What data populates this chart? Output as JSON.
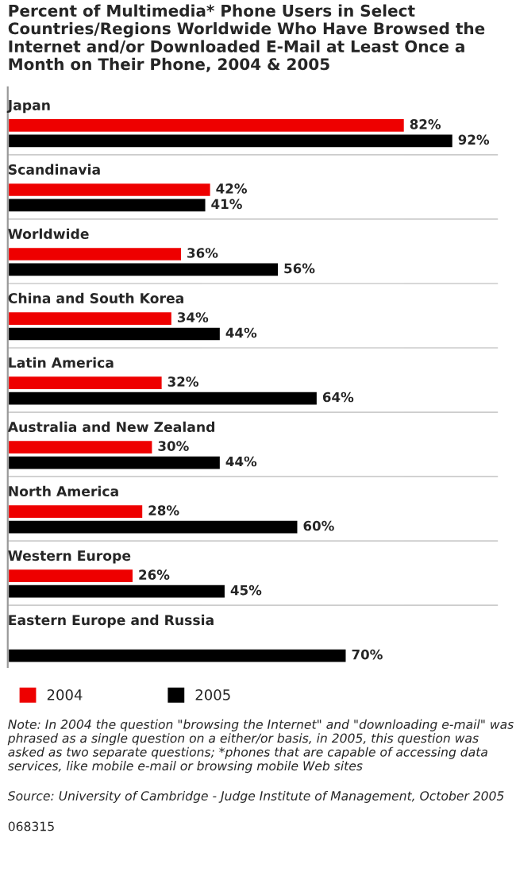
{
  "chart_data": {
    "type": "bar",
    "orientation": "horizontal",
    "title": "Percent of Multimedia* Phone Users in Select Countries/Regions Worldwide Who Have Browsed the Internet and/or Downloaded E-Mail at Least Once a Month on Their Phone, 2004 & 2005",
    "categories": [
      "Japan",
      "Scandinavia",
      "Worldwide",
      "China and South Korea",
      "Latin America",
      "Australia and New Zealand",
      "North America",
      "Western Europe",
      "Eastern Europe and Russia"
    ],
    "series": [
      {
        "name": "2004",
        "color": "#ee0000",
        "values": [
          82,
          42,
          36,
          34,
          32,
          30,
          28,
          26,
          null
        ],
        "value_labels": [
          "82%",
          "42%",
          "36%",
          "34%",
          "32%",
          "30%",
          "28%",
          "26%",
          null
        ]
      },
      {
        "name": "2005",
        "color": "#000000",
        "values": [
          92,
          41,
          56,
          44,
          64,
          44,
          60,
          45,
          70
        ],
        "value_labels": [
          "92%",
          "41%",
          "56%",
          "44%",
          "64%",
          "44%",
          "60%",
          "45%",
          "70%"
        ]
      }
    ],
    "legend": "bottom left",
    "annotations": [
      "Note: In 2004 the question \"browsing the Internet\" and \"downloading e-mail\" was phrased as a single question on a either/or basis, in 2005, this question was asked as two separate questions; *phones that are capable of accessing data services, like mobile e-mail or browsing mobile Web sites",
      "Source: University of Cambridge - Judge Institute of Management, October 2005",
      "068315"
    ]
  }
}
